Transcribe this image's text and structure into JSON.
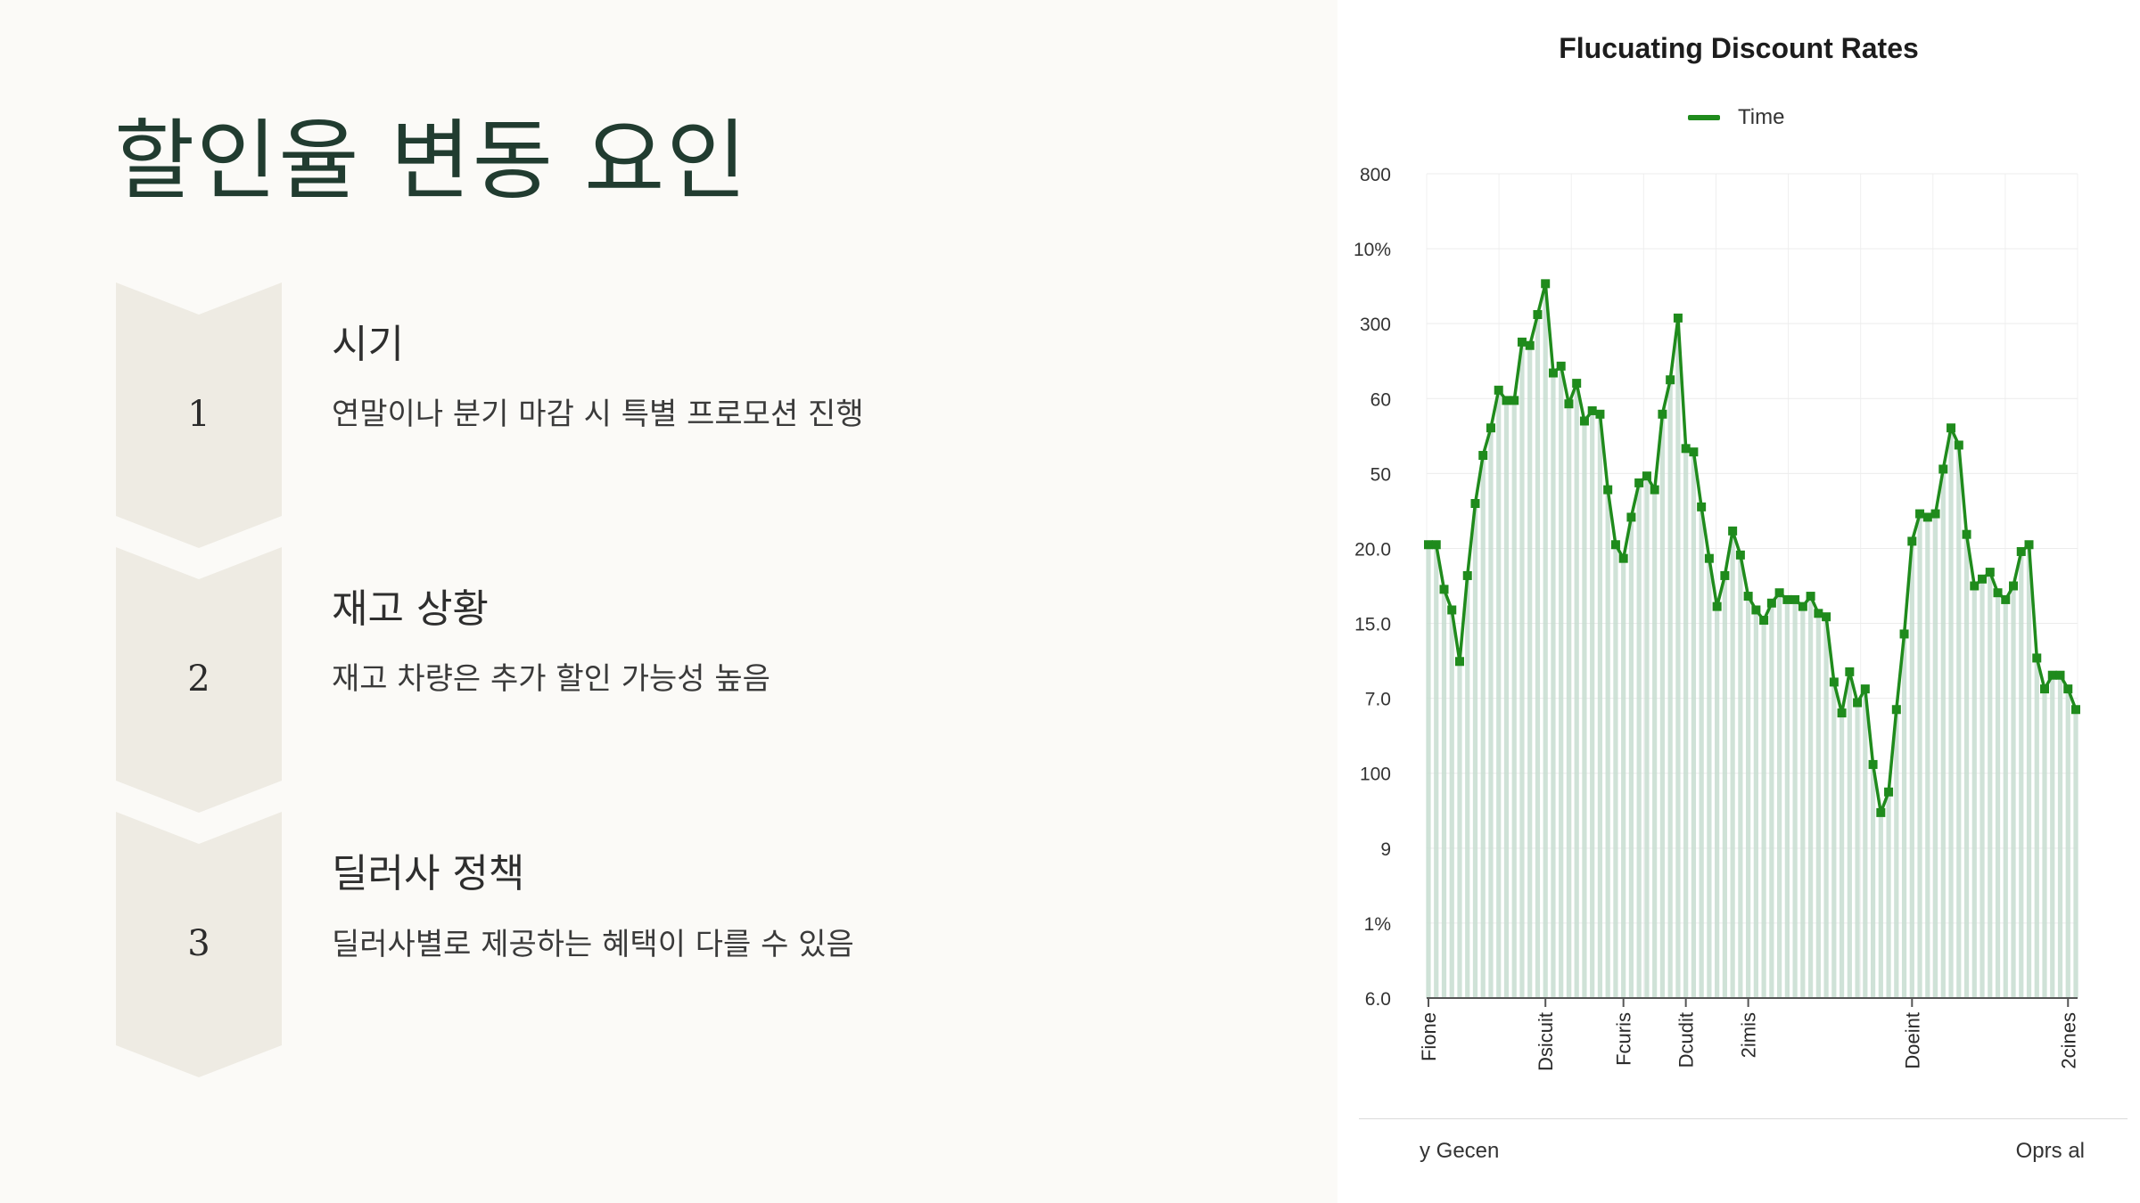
{
  "slide": {
    "title": "할인율 변동 요인",
    "steps": [
      {
        "number": "1",
        "title": "시기",
        "description": "연말이나 분기 마감 시 특별 프로모션 진행"
      },
      {
        "number": "2",
        "title": "재고 상황",
        "description": "재고 차량은 추가 할인 가능성 높음"
      },
      {
        "number": "3",
        "title": "딜러사 정책",
        "description": "딜러사별로 제공하는 혜택이 다를 수 있음"
      }
    ]
  },
  "chart_data": {
    "type": "line",
    "title": "Flucuating Discount Rates",
    "legend": {
      "position": "top",
      "entries": [
        "Time"
      ]
    },
    "grid": true,
    "line_color": "#1f8b1c",
    "area_fill_color": "#c7ddd0",
    "y_tick_labels": [
      "800",
      "10%",
      "300",
      "60",
      "50",
      "20.0",
      "15.0",
      "7.0",
      "100",
      "9",
      "1%",
      "6.0"
    ],
    "x_tick_labels": [
      "Fione",
      "Dsicuit",
      "Fcuris",
      "Dcudit",
      "2imis",
      "Doeint",
      "2cines"
    ],
    "footer_left": "y Gecen",
    "footer_right": "Oprs al",
    "series": [
      {
        "name": "Time",
        "values": [
          6.6,
          6.6,
          5.95,
          5.65,
          4.9,
          6.15,
          7.2,
          7.9,
          8.3,
          8.85,
          8.7,
          8.7,
          9.55,
          9.5,
          9.95,
          10.4,
          9.1,
          9.2,
          8.65,
          8.95,
          8.4,
          8.55,
          8.5,
          7.4,
          6.6,
          6.4,
          7.0,
          7.5,
          7.6,
          7.4,
          8.5,
          9.0,
          9.9,
          8.0,
          7.95,
          7.15,
          6.4,
          5.7,
          6.15,
          6.8,
          6.45,
          5.85,
          5.65,
          5.5,
          5.75,
          5.9,
          5.8,
          5.8,
          5.7,
          5.85,
          5.6,
          5.55,
          4.6,
          4.15,
          4.75,
          4.3,
          4.5,
          3.4,
          2.7,
          3.0,
          4.2,
          5.3,
          6.65,
          7.05,
          7.0,
          7.05,
          7.7,
          8.3,
          8.05,
          6.75,
          6.0,
          6.1,
          6.2,
          5.9,
          5.8,
          6.0,
          6.5,
          6.6,
          4.95,
          4.5,
          4.7,
          4.7,
          4.5,
          4.2
        ]
      }
    ]
  }
}
